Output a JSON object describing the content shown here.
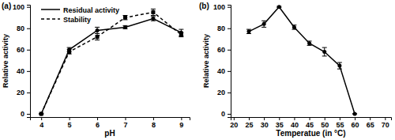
{
  "chart_data": [
    {
      "type": "line",
      "title": "(a)",
      "x_label": "pH",
      "y_label": "Relative activity",
      "x": [
        4,
        5,
        6,
        7,
        8,
        9
      ],
      "series": [
        {
          "name": "Residual activity",
          "color": "#000000",
          "line_style": "solid",
          "marker": "circle",
          "values": [
            0,
            60,
            78,
            81,
            89,
            76
          ],
          "errors": [
            0,
            2,
            3,
            1.5,
            2,
            3
          ]
        },
        {
          "name": "Stability",
          "color": "#000000",
          "line_style": "dashed",
          "marker": "square",
          "values": [
            0,
            58,
            72,
            90,
            95,
            74
          ],
          "errors": [
            0,
            2,
            3,
            2,
            3,
            2
          ]
        }
      ],
      "xlim": [
        3.6,
        9.3
      ],
      "xticks": [
        4,
        5,
        6,
        7,
        8,
        9
      ],
      "ylim": [
        -3,
        102
      ],
      "yticks": [
        0,
        20,
        40,
        60,
        80,
        100
      ],
      "legend": "upper left",
      "grid": false
    },
    {
      "type": "line",
      "title": "(b)",
      "x_label": "Temperatue (in °C)",
      "y_label": "Relative activity",
      "x": [
        25,
        30,
        35,
        40,
        45,
        50,
        55,
        60
      ],
      "series": [
        {
          "color": "#000000",
          "line_style": "solid",
          "marker": "circle",
          "values": [
            77,
            84,
            100,
            81,
            66,
            58,
            45,
            0
          ],
          "errors": [
            2,
            3,
            0.5,
            2,
            2,
            4,
            3,
            0
          ]
        }
      ],
      "xlim": [
        19,
        72
      ],
      "xticks": [
        20,
        25,
        30,
        35,
        40,
        45,
        50,
        55,
        60,
        65,
        70
      ],
      "ylim": [
        -3,
        102
      ],
      "yticks": [
        0,
        20,
        40,
        60,
        80,
        100
      ],
      "grid": false
    }
  ]
}
